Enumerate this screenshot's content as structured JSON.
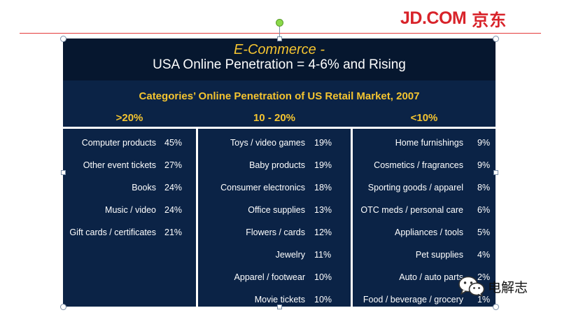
{
  "brand": {
    "name": "JD.COM",
    "name_cn": "京东",
    "color": "#d8232a"
  },
  "slide": {
    "title_line1": "E-Commerce -",
    "title_line2": "USA Online Penetration = 4-6% and Rising",
    "subtitle": "Categories’ Online Penetration of US Retail Market, 2007",
    "columns": [
      {
        "header": ">20%",
        "rows": [
          {
            "label": "Computer products",
            "value": "45%"
          },
          {
            "label": "Other event tickets",
            "value": "27%"
          },
          {
            "label": "Books",
            "value": "24%"
          },
          {
            "label": "Music / video",
            "value": "24%"
          },
          {
            "label": "Gift cards / certificates",
            "value": "21%"
          }
        ]
      },
      {
        "header": "10 - 20%",
        "rows": [
          {
            "label": "Toys / video games",
            "value": "19%"
          },
          {
            "label": "Baby products",
            "value": "19%"
          },
          {
            "label": "Consumer electronics",
            "value": "18%"
          },
          {
            "label": "Office supplies",
            "value": "13%"
          },
          {
            "label": "Flowers / cards",
            "value": "12%"
          },
          {
            "label": "Jewelry",
            "value": "11%"
          },
          {
            "label": "Apparel / footwear",
            "value": "10%"
          },
          {
            "label": "Movie tickets",
            "value": "10%"
          }
        ]
      },
      {
        "header": "<10%",
        "rows": [
          {
            "label": "Home furnishings",
            "value": "9%"
          },
          {
            "label": "Cosmetics / fragrances",
            "value": "9%"
          },
          {
            "label": "Sporting goods / apparel",
            "value": "8%"
          },
          {
            "label": "OTC meds / personal care",
            "value": "6%"
          },
          {
            "label": "Appliances / tools",
            "value": "5%"
          },
          {
            "label": "Pet supplies",
            "value": "4%"
          },
          {
            "label": "Auto / auto parts",
            "value": "2%"
          },
          {
            "label": "Food / beverage / grocery",
            "value": "1%"
          }
        ]
      }
    ]
  },
  "watermark": {
    "text": "电解志",
    "icon": "wechat-icon"
  }
}
